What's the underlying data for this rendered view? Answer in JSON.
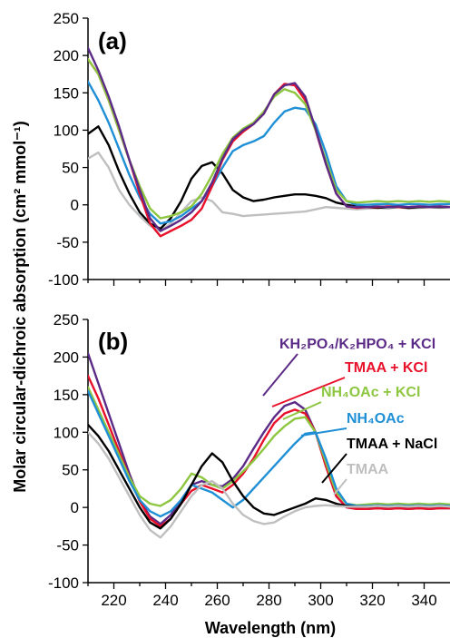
{
  "chart_data": [
    {
      "type": "line",
      "panel_label": "(a)",
      "xlabel": "",
      "ylabel": "Molar circular-dichroic absorption (cm² mmol⁻¹)",
      "xlim": [
        210,
        350
      ],
      "ylim": [
        -100,
        250
      ],
      "yticks": [
        -100,
        -50,
        0,
        50,
        100,
        150,
        200,
        250
      ],
      "xticks": [
        220,
        240,
        260,
        280,
        300,
        320,
        340
      ],
      "show_tick_labels_x": false,
      "series": [
        {
          "color": "#bfbfbf",
          "x": [
            210,
            214,
            218,
            222,
            226,
            230,
            234,
            238,
            242,
            246,
            250,
            254,
            258,
            262,
            266,
            270,
            274,
            278,
            282,
            286,
            290,
            294,
            298,
            302,
            306,
            310,
            314,
            318,
            322,
            326,
            330,
            334,
            338,
            342,
            346,
            350
          ],
          "y": [
            62,
            70,
            50,
            20,
            0,
            -15,
            -28,
            -35,
            -25,
            -10,
            5,
            10,
            5,
            -10,
            -12,
            -15,
            -14,
            -13,
            -12,
            -11,
            -10,
            -9,
            -6,
            -3,
            -4,
            -5,
            -6,
            -5,
            -4,
            -5,
            -3,
            -5,
            -4,
            -3,
            -4,
            -3
          ]
        },
        {
          "color": "#000000",
          "x": [
            210,
            214,
            218,
            222,
            226,
            230,
            234,
            238,
            242,
            246,
            250,
            254,
            258,
            262,
            266,
            270,
            274,
            278,
            282,
            286,
            290,
            294,
            298,
            302,
            306,
            310,
            314,
            318,
            322,
            326,
            330,
            334,
            338,
            342,
            346,
            350
          ],
          "y": [
            95,
            105,
            80,
            45,
            15,
            -10,
            -25,
            -32,
            -18,
            5,
            35,
            52,
            57,
            42,
            20,
            10,
            5,
            7,
            10,
            12,
            14,
            14,
            12,
            9,
            3,
            0,
            -2,
            -3,
            -4,
            -3,
            -3,
            -4,
            -3,
            -3,
            -3,
            -3
          ]
        },
        {
          "color": "#1f8fd6",
          "x": [
            210,
            214,
            218,
            222,
            226,
            230,
            234,
            238,
            242,
            246,
            250,
            254,
            258,
            262,
            266,
            270,
            274,
            278,
            282,
            286,
            290,
            294,
            298,
            302,
            306,
            310,
            314,
            318,
            322,
            326,
            330,
            334,
            338,
            342,
            346,
            350
          ],
          "y": [
            165,
            140,
            110,
            75,
            40,
            10,
            -12,
            -25,
            -22,
            -15,
            -5,
            5,
            25,
            50,
            72,
            80,
            85,
            92,
            110,
            125,
            130,
            128,
            108,
            70,
            25,
            5,
            0,
            0,
            1,
            1,
            0,
            1,
            1,
            0,
            1,
            1
          ]
        },
        {
          "color": "#e8102a",
          "x": [
            210,
            214,
            218,
            222,
            226,
            230,
            234,
            238,
            242,
            246,
            250,
            254,
            258,
            262,
            266,
            270,
            274,
            278,
            282,
            286,
            290,
            294,
            298,
            302,
            306,
            310,
            314,
            318,
            322,
            326,
            330,
            334,
            338,
            342,
            346,
            350
          ],
          "y": [
            195,
            175,
            140,
            100,
            60,
            15,
            -25,
            -42,
            -35,
            -28,
            -20,
            -5,
            25,
            60,
            85,
            98,
            108,
            122,
            148,
            162,
            160,
            140,
            100,
            55,
            15,
            -2,
            -4,
            -3,
            -3,
            -2,
            -3,
            -3,
            -2,
            -3,
            -2,
            -3
          ]
        },
        {
          "color": "#8dc63f",
          "x": [
            210,
            214,
            218,
            222,
            226,
            230,
            234,
            238,
            242,
            246,
            250,
            254,
            258,
            262,
            266,
            270,
            274,
            278,
            282,
            286,
            290,
            294,
            298,
            302,
            306,
            310,
            314,
            318,
            322,
            326,
            330,
            334,
            338,
            342,
            346,
            350
          ],
          "y": [
            195,
            175,
            140,
            100,
            60,
            25,
            -5,
            -18,
            -15,
            -10,
            -2,
            15,
            40,
            68,
            90,
            102,
            110,
            125,
            145,
            155,
            150,
            135,
            100,
            60,
            20,
            5,
            3,
            4,
            5,
            4,
            5,
            4,
            5,
            4,
            5,
            4
          ]
        },
        {
          "color": "#5b2a86",
          "x": [
            210,
            214,
            218,
            222,
            226,
            230,
            234,
            238,
            242,
            246,
            250,
            254,
            258,
            262,
            266,
            270,
            274,
            278,
            282,
            286,
            290,
            294,
            298,
            302,
            306,
            310,
            314,
            318,
            322,
            326,
            330,
            334,
            338,
            342,
            346,
            350
          ],
          "y": [
            210,
            180,
            145,
            105,
            60,
            20,
            -18,
            -35,
            -28,
            -20,
            -10,
            5,
            30,
            62,
            88,
            100,
            108,
            122,
            148,
            160,
            163,
            145,
            102,
            55,
            15,
            -2,
            -3,
            -3,
            -2,
            -3,
            -2,
            -3,
            -2,
            -3,
            -2,
            -3
          ]
        }
      ]
    },
    {
      "type": "line",
      "panel_label": "(b)",
      "xlabel": "Wavelength (nm)",
      "ylabel": "",
      "xlim": [
        210,
        350
      ],
      "ylim": [
        -100,
        250
      ],
      "yticks": [
        -100,
        -50,
        0,
        50,
        100,
        150,
        200,
        250
      ],
      "xticks": [
        220,
        240,
        260,
        280,
        300,
        320,
        340
      ],
      "show_tick_labels_x": true,
      "series": [
        {
          "name": "KH₂PO₄/K₂HPO₄ + KCl",
          "color": "#5b2a86",
          "x": [
            210,
            214,
            218,
            222,
            226,
            230,
            234,
            238,
            242,
            246,
            250,
            254,
            258,
            262,
            266,
            270,
            274,
            278,
            282,
            286,
            290,
            294,
            298,
            302,
            306,
            310,
            314,
            318,
            322,
            326,
            330,
            334,
            338,
            342,
            346,
            350
          ],
          "y": [
            205,
            165,
            125,
            85,
            45,
            10,
            -12,
            -22,
            -10,
            10,
            30,
            35,
            30,
            28,
            38,
            55,
            78,
            100,
            120,
            135,
            140,
            130,
            100,
            55,
            15,
            0,
            -2,
            -2,
            -1,
            -2,
            -1,
            -2,
            -1,
            -2,
            -1,
            -1
          ]
        },
        {
          "name": "TMAA + KCl",
          "color": "#e8102a",
          "x": [
            210,
            214,
            218,
            222,
            226,
            230,
            234,
            238,
            242,
            246,
            250,
            254,
            258,
            262,
            266,
            270,
            274,
            278,
            282,
            286,
            290,
            294,
            298,
            302,
            306,
            310,
            314,
            318,
            322,
            326,
            330,
            334,
            338,
            342,
            346,
            350
          ],
          "y": [
            175,
            145,
            110,
            75,
            40,
            8,
            -15,
            -25,
            -15,
            5,
            22,
            30,
            25,
            20,
            30,
            45,
            65,
            90,
            112,
            125,
            130,
            125,
            100,
            55,
            15,
            0,
            -2,
            -2,
            -1,
            -2,
            -1,
            -2,
            -1,
            -2,
            -1,
            -1
          ]
        },
        {
          "name": "NH₄OAc + KCl",
          "color": "#8dc63f",
          "x": [
            210,
            214,
            218,
            222,
            226,
            230,
            234,
            238,
            242,
            246,
            250,
            254,
            258,
            262,
            266,
            270,
            274,
            278,
            282,
            286,
            290,
            294,
            298,
            302,
            306,
            310,
            314,
            318,
            322,
            326,
            330,
            334,
            338,
            342,
            346,
            350
          ],
          "y": [
            160,
            130,
            100,
            70,
            40,
            15,
            5,
            2,
            10,
            25,
            45,
            40,
            30,
            25,
            35,
            48,
            62,
            78,
            95,
            108,
            118,
            120,
            100,
            60,
            20,
            5,
            3,
            4,
            5,
            4,
            5,
            4,
            5,
            4,
            5,
            4
          ]
        },
        {
          "name": "NH₄OAc",
          "color": "#1f8fd6",
          "x": [
            210,
            214,
            218,
            222,
            226,
            230,
            234,
            238,
            242,
            246,
            250,
            254,
            258,
            262,
            266,
            270,
            274,
            278,
            282,
            286,
            290,
            294,
            298,
            302,
            306,
            310,
            314,
            318,
            322,
            326,
            330,
            334,
            338,
            342,
            346,
            350
          ],
          "y": [
            155,
            125,
            95,
            65,
            35,
            10,
            -5,
            -12,
            -5,
            10,
            30,
            25,
            20,
            10,
            0,
            10,
            25,
            40,
            55,
            70,
            85,
            98,
            100,
            65,
            25,
            5,
            2,
            2,
            3,
            2,
            3,
            2,
            3,
            2,
            3,
            2
          ]
        },
        {
          "name": "TMAA + NaCl",
          "color": "#000000",
          "x": [
            210,
            214,
            218,
            222,
            226,
            230,
            234,
            238,
            242,
            246,
            250,
            254,
            258,
            262,
            266,
            270,
            274,
            278,
            282,
            286,
            290,
            294,
            298,
            302,
            306,
            310,
            314,
            318,
            322,
            326,
            330,
            334,
            338,
            342,
            346,
            350
          ],
          "y": [
            110,
            95,
            75,
            50,
            25,
            0,
            -20,
            -28,
            -15,
            5,
            30,
            55,
            72,
            60,
            35,
            15,
            0,
            -8,
            -10,
            -5,
            0,
            5,
            12,
            10,
            5,
            2,
            1,
            1,
            2,
            1,
            2,
            1,
            2,
            1,
            2,
            1
          ]
        },
        {
          "name": "TMAA",
          "color": "#bfbfbf",
          "x": [
            210,
            214,
            218,
            222,
            226,
            230,
            234,
            238,
            242,
            246,
            250,
            254,
            258,
            262,
            266,
            270,
            274,
            278,
            282,
            286,
            290,
            294,
            298,
            302,
            306,
            310,
            314,
            318,
            322,
            326,
            330,
            334,
            338,
            342,
            346,
            350
          ],
          "y": [
            100,
            85,
            65,
            40,
            15,
            -10,
            -30,
            -40,
            -25,
            -5,
            15,
            30,
            35,
            25,
            5,
            -10,
            -18,
            -22,
            -20,
            -12,
            -5,
            0,
            2,
            3,
            2,
            1,
            1,
            1,
            2,
            1,
            2,
            1,
            2,
            1,
            2,
            1
          ]
        }
      ]
    }
  ]
}
